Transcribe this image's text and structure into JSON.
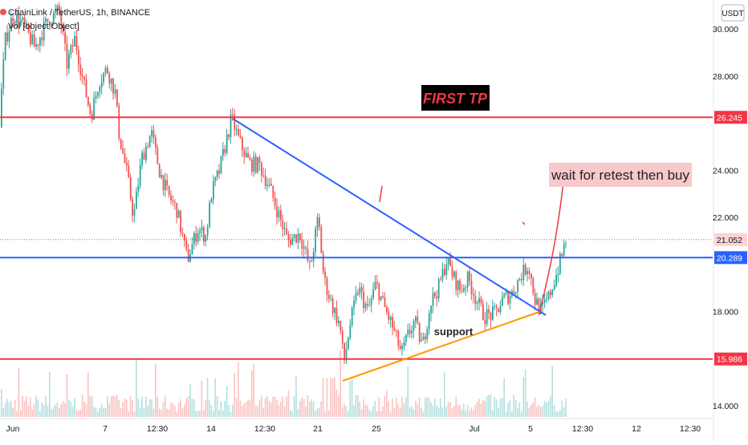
{
  "header": {
    "symbol": "ChainLink / TetherUS, 1h, BINANCE",
    "indicator": "Vol [object Object]"
  },
  "colors": {
    "up": "#26a69a",
    "down": "#ef5350",
    "resistance": "#f23645",
    "support_level": "#2962ff",
    "trendline": "#2962ff",
    "support_line": "#ff9800",
    "annotation_bg": "#f8c9cc",
    "tp_bg": "#000000",
    "tp_text": "#f23645"
  },
  "chart_data": {
    "type": "candlestick",
    "currency": "USDT",
    "price_ticks": [
      "30.000",
      "28.000",
      "24.000",
      "22.000",
      "18.000",
      "14.000"
    ],
    "time_ticks": [
      "Jun",
      "7",
      "12:30",
      "14",
      "12:30",
      "21",
      "25",
      "Jul",
      "5",
      "12:30",
      "12",
      "12:30"
    ],
    "ylim": [
      13.7,
      31.0
    ],
    "horizontal_levels": [
      {
        "price": 26.245,
        "label": "26.245",
        "color": "#f23645"
      },
      {
        "price": 20.289,
        "label": "20.289",
        "color": "#2962ff"
      },
      {
        "price": 15.986,
        "label": "15.986",
        "color": "#f23645"
      }
    ],
    "last_price": {
      "price": 21.052,
      "label": "21.052"
    },
    "price_path": [
      [
        0,
        25.8
      ],
      [
        8,
        29.5
      ],
      [
        18,
        30.6
      ],
      [
        30,
        30.2
      ],
      [
        45,
        29.2
      ],
      [
        60,
        30.3
      ],
      [
        75,
        30.8
      ],
      [
        85,
        28.5
      ],
      [
        95,
        29.6
      ],
      [
        105,
        27.8
      ],
      [
        115,
        26.3
      ],
      [
        125,
        27.8
      ],
      [
        135,
        28.3
      ],
      [
        145,
        27.3
      ],
      [
        150,
        25.5
      ],
      [
        160,
        23.8
      ],
      [
        168,
        22.0
      ],
      [
        178,
        24.5
      ],
      [
        190,
        25.6
      ],
      [
        200,
        24.0
      ],
      [
        210,
        23.0
      ],
      [
        222,
        22.3
      ],
      [
        235,
        20.2
      ],
      [
        248,
        21.5
      ],
      [
        258,
        21.2
      ],
      [
        265,
        23.0
      ],
      [
        275,
        24.0
      ],
      [
        290,
        26.2
      ],
      [
        300,
        25.2
      ],
      [
        312,
        24.3
      ],
      [
        325,
        24.2
      ],
      [
        338,
        23.2
      ],
      [
        350,
        22.0
      ],
      [
        360,
        21.0
      ],
      [
        375,
        21.3
      ],
      [
        388,
        19.8
      ],
      [
        398,
        22.0
      ],
      [
        405,
        19.4
      ],
      [
        415,
        18.3
      ],
      [
        425,
        17.4
      ],
      [
        430,
        15.8
      ],
      [
        438,
        17.5
      ],
      [
        448,
        19.0
      ],
      [
        460,
        18.0
      ],
      [
        470,
        19.2
      ],
      [
        480,
        18.2
      ],
      [
        490,
        17.4
      ],
      [
        502,
        16.2
      ],
      [
        510,
        17.0
      ],
      [
        518,
        17.6
      ],
      [
        528,
        16.5
      ],
      [
        538,
        18.4
      ],
      [
        548,
        19.0
      ],
      [
        558,
        20.2
      ],
      [
        566,
        19.5
      ],
      [
        575,
        18.9
      ],
      [
        585,
        19.4
      ],
      [
        595,
        18.5
      ],
      [
        605,
        17.8
      ],
      [
        618,
        17.9
      ],
      [
        628,
        18.5
      ],
      [
        640,
        18.8
      ],
      [
        650,
        19.5
      ],
      [
        660,
        20.0
      ],
      [
        668,
        18.5
      ],
      [
        676,
        18.0
      ],
      [
        685,
        18.6
      ],
      [
        695,
        19.6
      ],
      [
        702,
        20.4
      ],
      [
        706,
        21.05
      ]
    ]
  },
  "annotations": {
    "first_tp": "FIRST TP",
    "retest": "wait for retest then buy",
    "support": "support"
  }
}
